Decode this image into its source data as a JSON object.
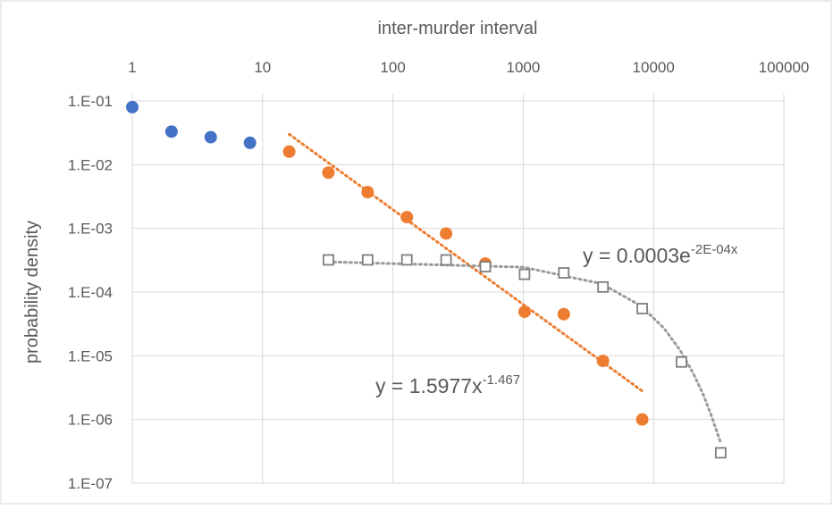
{
  "chart_data": {
    "type": "scatter",
    "x_label": "inter-murder interval",
    "y_label": "probability density",
    "log_x": true,
    "log_y": true,
    "grid": true,
    "xlim": [
      1,
      100000
    ],
    "ylim": [
      1e-07,
      0.1
    ],
    "xticks": [
      1,
      10,
      100,
      1000,
      10000,
      100000
    ],
    "yticks": [
      {
        "value": 0.1,
        "label": "1.E-01"
      },
      {
        "value": 0.01,
        "label": "1.E-02"
      },
      {
        "value": 0.001,
        "label": "1.E-03"
      },
      {
        "value": 0.0001,
        "label": "1.E-04"
      },
      {
        "value": 1e-05,
        "label": "1.E-05"
      },
      {
        "value": 1e-06,
        "label": "1.E-06"
      },
      {
        "value": 1e-07,
        "label": "1.E-07"
      }
    ],
    "series": [
      {
        "marker": "circle",
        "color": "#4472c4",
        "x": [
          1,
          2,
          4,
          8
        ],
        "values": [
          0.08,
          0.033,
          0.027,
          0.022
        ]
      },
      {
        "marker": "circle",
        "color": "#ed7d31",
        "x": [
          16,
          32,
          64,
          128,
          256,
          512,
          1024,
          2048,
          4096,
          8192
        ],
        "values": [
          0.016,
          0.0075,
          0.0037,
          0.0015,
          0.00083,
          0.00028,
          4.9e-05,
          4.5e-05,
          8.3e-06,
          1e-06
        ]
      },
      {
        "marker": "square",
        "color": "#7f7f7f",
        "x": [
          32,
          64,
          128,
          256,
          512,
          1024,
          2048,
          4096,
          8192,
          16384,
          32768
        ],
        "values": [
          0.00032,
          0.00032,
          0.00032,
          0.00032,
          0.00025,
          0.00019,
          0.0002,
          0.00012,
          5.5e-05,
          8e-06,
          3e-07
        ]
      }
    ],
    "trendlines": [
      {
        "color": "#ed7d31",
        "x": [
          16,
          8192
        ],
        "values": [
          0.03,
          2.8e-06
        ],
        "equation": "y = 1.5977x",
        "exponent": "-1.467"
      },
      {
        "color": "#9a9a9a",
        "x": [
          32,
          1000,
          4000,
          8000,
          12000,
          16000,
          20000,
          24000,
          28000,
          32768
        ],
        "values": [
          0.000298,
          0.000246,
          0.000135,
          6.06e-05,
          2.72e-05,
          1.22e-05,
          5.5e-06,
          2.5e-06,
          1.1e-06,
          4.3e-07
        ],
        "equation": "y = 0.0003e",
        "exponent": "-2E-04x"
      }
    ]
  }
}
